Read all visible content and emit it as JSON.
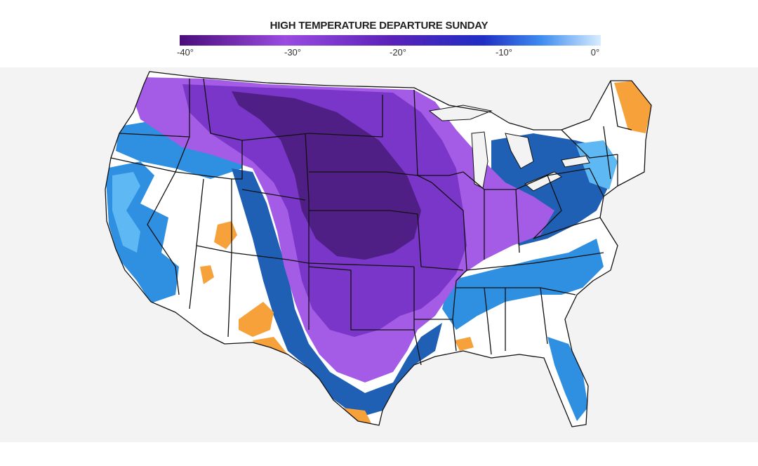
{
  "title": "HIGH TEMPERATURE DEPARTURE SUNDAY",
  "legend": {
    "ticks": [
      "-40°",
      "-30°",
      "-20°",
      "-10°",
      "0°"
    ],
    "range": [
      -40,
      0
    ],
    "color_stops": [
      "#4a0d7a",
      "#9a4be0",
      "#5a22b8",
      "#1f2ec4",
      "#3f8df0",
      "#d8ecff"
    ]
  },
  "map_colors": {
    "deep_purple": "#4f1f86",
    "purple": "#7a36c8",
    "violet": "#a45ce6",
    "navy": "#1f5fb4",
    "blue": "#2f8fe0",
    "light_blue": "#5eb8f4",
    "white": "#ffffff",
    "orange": "#f6a13a"
  },
  "map": {
    "region": "Contiguous United States",
    "boundaries": "state borders",
    "high_departure_region": "Central Plains and Midwest"
  }
}
